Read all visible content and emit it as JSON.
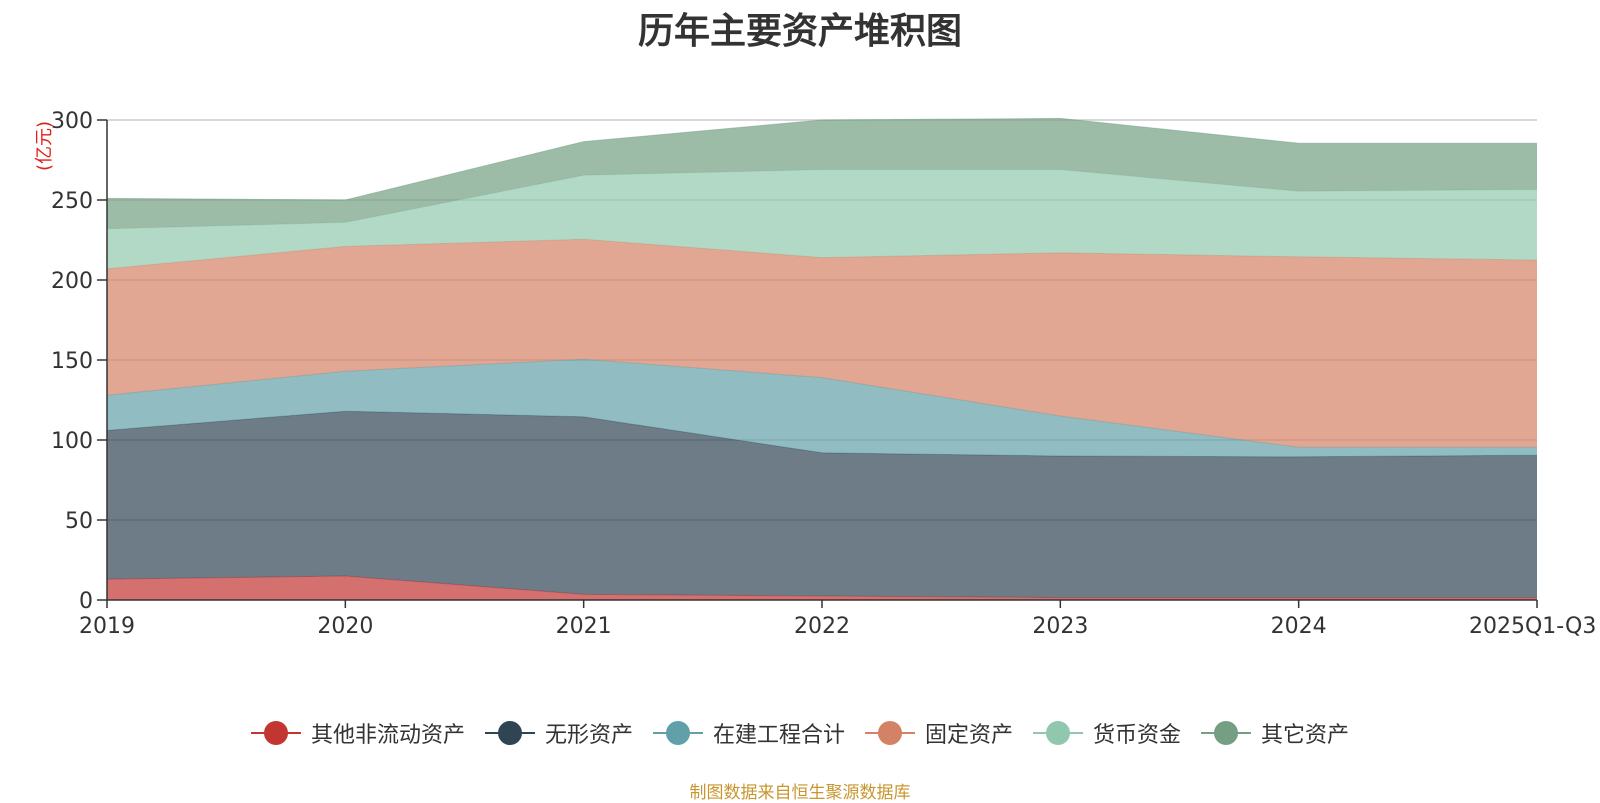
{
  "chart_data": {
    "type": "area",
    "stacked": true,
    "title": "历年主要资产堆积图",
    "unit_label": "(亿元)",
    "categories": [
      "2019",
      "2020",
      "2021",
      "2022",
      "2023",
      "2024",
      "2025Q1-Q3"
    ],
    "ylim": [
      0,
      300
    ],
    "yticks": [
      0,
      50,
      100,
      150,
      200,
      250,
      300
    ],
    "grid": true,
    "legend_position": "bottom",
    "series": [
      {
        "name": "其他非流动资产",
        "color": "#c23531",
        "values": [
          13,
          15,
          3.5,
          2.5,
          1.5,
          1.5,
          1.5
        ]
      },
      {
        "name": "无形资产",
        "color": "#2f4554",
        "values": [
          93,
          103,
          111,
          89.5,
          88.5,
          88,
          89
        ]
      },
      {
        "name": "在建工程合计",
        "color": "#61a0a8",
        "values": [
          22,
          25,
          36,
          47,
          25,
          6,
          5
        ]
      },
      {
        "name": "固定资产",
        "color": "#d48265",
        "values": [
          79,
          78,
          75,
          75,
          102,
          119,
          117
        ]
      },
      {
        "name": "货币资金",
        "color": "#91c7ae",
        "values": [
          25,
          15,
          40,
          55,
          52,
          41,
          44
        ]
      },
      {
        "name": "其它资产",
        "color": "#749f83",
        "values": [
          19,
          14,
          21,
          31,
          32,
          30,
          29
        ]
      }
    ]
  },
  "source_note": "制图数据来自恒生聚源数据库"
}
